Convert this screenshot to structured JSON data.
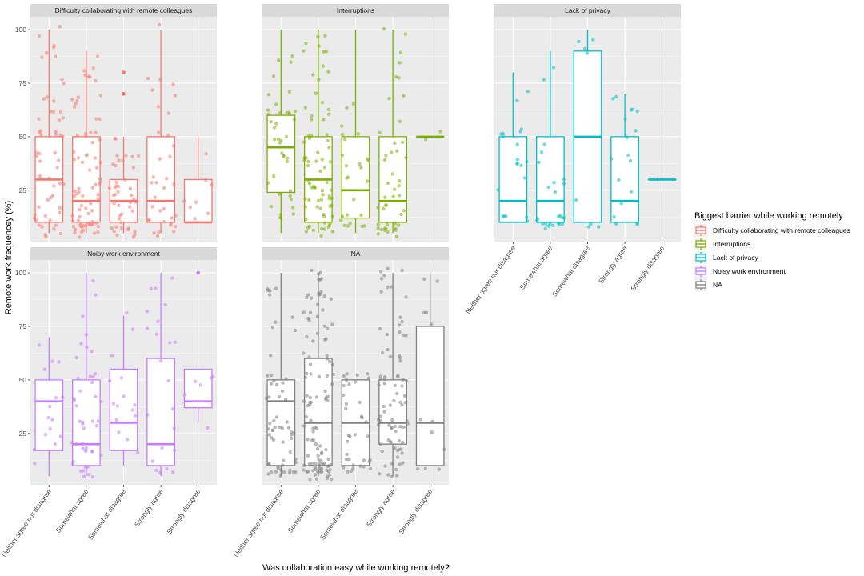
{
  "chart_data": {
    "type": "boxplot",
    "layout": "facet_wrap 2x3",
    "xlabel": "Was collaboration easy while working remotely?",
    "ylabel": "Remote work frequencey (%)",
    "categories": [
      "Neither agree nor disagree",
      "Somewhat agree",
      "Somewhat disagree",
      "Strongly agree",
      "Strongly disagree"
    ],
    "ylim": [
      1,
      106
    ],
    "yticks": [
      25,
      50,
      75,
      100
    ],
    "grid": true,
    "legend": {
      "title": "Biggest barrier while working remotely",
      "placement": "right",
      "entries": [
        {
          "label": "Difficulty collaborating with remote colleagues",
          "color": "#F8766D"
        },
        {
          "label": "Interruptions",
          "color": "#7CAE00"
        },
        {
          "label": "Lack of privacy",
          "color": "#00BFC4"
        },
        {
          "label": "Noisy work environment",
          "color": "#C77CFF"
        },
        {
          "label": "NA",
          "color": "#7F7F7F"
        }
      ]
    },
    "facets": [
      {
        "title": "Difficulty collaborating with remote colleagues",
        "color": "#F8766D",
        "boxes": [
          {
            "category": "Neither agree nor disagree",
            "min": 5,
            "q1": 10,
            "median": 30,
            "q3": 50,
            "max": 100
          },
          {
            "category": "Somewhat agree",
            "min": 5,
            "q1": 10,
            "median": 20,
            "q3": 50,
            "max": 90
          },
          {
            "category": "Somewhat disagree",
            "min": 5,
            "q1": 10,
            "median": 20,
            "q3": 30,
            "max": 50,
            "outliers": [
              70,
              80
            ]
          },
          {
            "category": "Strongly agree",
            "min": 5,
            "q1": 10,
            "median": 20,
            "q3": 50,
            "max": 100
          },
          {
            "category": "Strongly disagree",
            "min": 10,
            "q1": 10,
            "median": 10,
            "q3": 30,
            "max": 50
          }
        ],
        "points_per_category": [
          55,
          75,
          45,
          35,
          8
        ]
      },
      {
        "title": "Interruptions",
        "color": "#7CAE00",
        "boxes": [
          {
            "category": "Neither agree nor disagree",
            "min": 5,
            "q1": 24,
            "median": 45,
            "q3": 60,
            "max": 100
          },
          {
            "category": "Somewhat agree",
            "min": 5,
            "q1": 10,
            "median": 30,
            "q3": 50,
            "max": 100
          },
          {
            "category": "Somewhat disagree",
            "min": 5,
            "q1": 12,
            "median": 25,
            "q3": 50,
            "max": 100
          },
          {
            "category": "Strongly agree",
            "min": 5,
            "q1": 10,
            "median": 20,
            "q3": 50,
            "max": 100
          },
          {
            "category": "Strongly disagree",
            "min": 50,
            "q1": 50,
            "median": 50,
            "q3": 50,
            "max": 50
          }
        ],
        "points_per_category": [
          40,
          75,
          25,
          45,
          2
        ]
      },
      {
        "title": "Lack of privacy",
        "color": "#00BFC4",
        "boxes": [
          {
            "category": "Neither agree nor disagree",
            "min": 10,
            "q1": 10,
            "median": 20,
            "q3": 50,
            "max": 80
          },
          {
            "category": "Somewhat agree",
            "min": 10,
            "q1": 10,
            "median": 20,
            "q3": 50,
            "max": 90
          },
          {
            "category": "Somewhat disagree",
            "min": 10,
            "q1": 10,
            "median": 50,
            "q3": 90,
            "max": 100
          },
          {
            "category": "Strongly agree",
            "min": 10,
            "q1": 10,
            "median": 20,
            "q3": 50,
            "max": 70
          },
          {
            "category": "Strongly disagree",
            "min": 30,
            "q1": 30,
            "median": 30,
            "q3": 30,
            "max": 30
          }
        ],
        "points_per_category": [
          20,
          25,
          8,
          18,
          1
        ]
      },
      {
        "title": "Noisy work environment",
        "color": "#C77CFF",
        "boxes": [
          {
            "category": "Neither agree nor disagree",
            "min": 5,
            "q1": 17,
            "median": 40,
            "q3": 50,
            "max": 70
          },
          {
            "category": "Somewhat agree",
            "min": 5,
            "q1": 10,
            "median": 20,
            "q3": 50,
            "max": 100
          },
          {
            "category": "Somewhat disagree",
            "min": 10,
            "q1": 17,
            "median": 30,
            "q3": 55,
            "max": 80
          },
          {
            "category": "Strongly agree",
            "min": 5,
            "q1": 10,
            "median": 20,
            "q3": 60,
            "max": 100
          },
          {
            "category": "Strongly disagree",
            "min": 30,
            "q1": 37,
            "median": 40,
            "q3": 55,
            "max": 55,
            "outliers": [
              100
            ]
          }
        ],
        "points_per_category": [
          15,
          45,
          15,
          22,
          6
        ]
      },
      {
        "title": "NA",
        "color": "#7F7F7F",
        "boxes": [
          {
            "category": "Neither agree nor disagree",
            "min": 5,
            "q1": 10,
            "median": 40,
            "q3": 50,
            "max": 100
          },
          {
            "category": "Somewhat agree",
            "min": 5,
            "q1": 10,
            "median": 30,
            "q3": 60,
            "max": 100
          },
          {
            "category": "Somewhat disagree",
            "min": 10,
            "q1": 10,
            "median": 30,
            "q3": 50,
            "max": 50
          },
          {
            "category": "Strongly agree",
            "min": 5,
            "q1": 20,
            "median": 30,
            "q3": 50,
            "max": 100
          },
          {
            "category": "Strongly disagree",
            "min": 10,
            "q1": 10,
            "median": 30,
            "q3": 75,
            "max": 100
          }
        ],
        "points_per_category": [
          60,
          110,
          35,
          80,
          12
        ]
      }
    ]
  }
}
